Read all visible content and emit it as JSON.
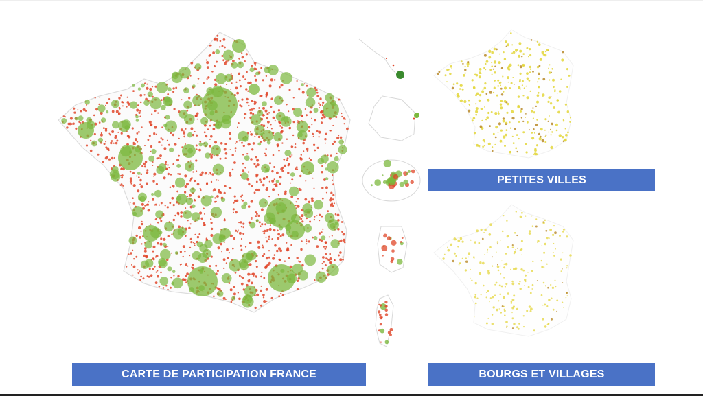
{
  "labels": {
    "main": "CARTE DE PARTICIPATION FRANCE",
    "petites_villes": "PETITES VILLES",
    "bourgs_villages": "BOURGS ET VILLAGES"
  },
  "colors": {
    "label_bg": "#4a72c6",
    "label_text": "#ffffff",
    "big_city": "#7cb83e",
    "small_commune": "#e0472a",
    "petite_ville": "#e3d63a",
    "bourg": "#e6d84a",
    "outline": "#dcdcdc"
  },
  "maps": {
    "main": {
      "subject": "France métropolitaine",
      "symbol_sizes": [
        "small-red",
        "large-green"
      ]
    },
    "overseas": [
      "Guadeloupe",
      "Martinique",
      "La Réunion",
      "Guyane",
      "Corse"
    ],
    "petites_villes": {
      "symbol": "yellow-dots"
    },
    "bourgs_villages": {
      "symbol": "yellow-dots"
    }
  }
}
